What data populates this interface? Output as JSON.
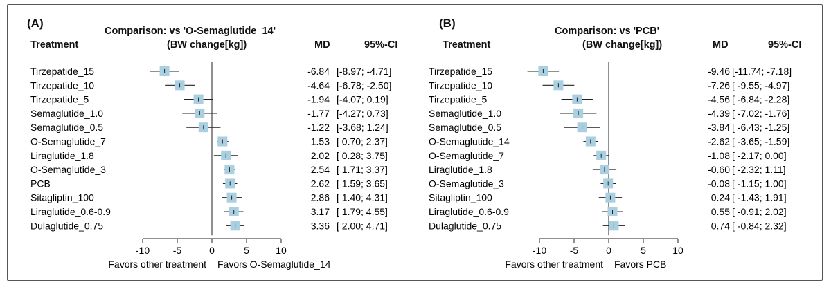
{
  "chart_data": [
    {
      "type": "forest",
      "panel_label": "(A)",
      "title": "Comparison: vs 'O-Semaglutide_14'",
      "subtitle": "(BW change[kg])",
      "column_headers": {
        "treatment": "Treatment",
        "md": "MD",
        "ci": "95%-CI"
      },
      "x_ticks": [
        "-10",
        "-5",
        "0",
        "5",
        "10"
      ],
      "xlim": [
        -10,
        10
      ],
      "xlabel_left": "Favors other treatment",
      "xlabel_right": "Favors O-Semaglutide_14",
      "rows": [
        {
          "treatment": "Tirzepatide_15",
          "md": -6.84,
          "lo": -8.97,
          "hi": -4.71,
          "md_text": "-6.84",
          "ci_text": "[-8.97; -4.71]"
        },
        {
          "treatment": "Tirzepatide_10",
          "md": -4.64,
          "lo": -6.78,
          "hi": -2.5,
          "md_text": "-4.64",
          "ci_text": "[-6.78; -2.50]"
        },
        {
          "treatment": "Tirzepatide_5",
          "md": -1.94,
          "lo": -4.07,
          "hi": 0.19,
          "md_text": "-1.94",
          "ci_text": "[-4.07; 0.19]"
        },
        {
          "treatment": "Semaglutide_1.0",
          "md": -1.77,
          "lo": -4.27,
          "hi": 0.73,
          "md_text": "-1.77",
          "ci_text": "[-4.27; 0.73]"
        },
        {
          "treatment": "Semaglutide_0.5",
          "md": -1.22,
          "lo": -3.68,
          "hi": 1.24,
          "md_text": "-1.22",
          "ci_text": "[-3.68; 1.24]"
        },
        {
          "treatment": "O-Semaglutide_7",
          "md": 1.53,
          "lo": 0.7,
          "hi": 2.37,
          "md_text": "1.53",
          "ci_text": "[ 0.70; 2.37]"
        },
        {
          "treatment": "Liraglutide_1.8",
          "md": 2.02,
          "lo": 0.28,
          "hi": 3.75,
          "md_text": "2.02",
          "ci_text": "[ 0.28; 3.75]"
        },
        {
          "treatment": "O-Semaglutide_3",
          "md": 2.54,
          "lo": 1.71,
          "hi": 3.37,
          "md_text": "2.54",
          "ci_text": "[ 1.71; 3.37]"
        },
        {
          "treatment": "PCB",
          "md": 2.62,
          "lo": 1.59,
          "hi": 3.65,
          "md_text": "2.62",
          "ci_text": "[ 1.59; 3.65]"
        },
        {
          "treatment": "Sitagliptin_100",
          "md": 2.86,
          "lo": 1.4,
          "hi": 4.31,
          "md_text": "2.86",
          "ci_text": "[ 1.40; 4.31]"
        },
        {
          "treatment": "Liraglutide_0.6-0.9",
          "md": 3.17,
          "lo": 1.79,
          "hi": 4.55,
          "md_text": "3.17",
          "ci_text": "[ 1.79; 4.55]"
        },
        {
          "treatment": "Dulaglutide_0.75",
          "md": 3.36,
          "lo": 2.0,
          "hi": 4.71,
          "md_text": "3.36",
          "ci_text": "[ 2.00; 4.71]"
        }
      ]
    },
    {
      "type": "forest",
      "panel_label": "(B)",
      "title": "Comparison: vs 'PCB'",
      "subtitle": "(BW change[kg])",
      "column_headers": {
        "treatment": "Treatment",
        "md": "MD",
        "ci": "95%-CI"
      },
      "x_ticks": [
        "-10",
        "-5",
        "0",
        "5",
        "10"
      ],
      "xlim": [
        -10,
        10
      ],
      "xlabel_left": "Favors other treatment",
      "xlabel_right": "Favors PCB",
      "rows": [
        {
          "treatment": "Tirzepatide_15",
          "md": -9.46,
          "lo": -11.74,
          "hi": -7.18,
          "md_text": "-9.46",
          "ci_text": "[-11.74; -7.18]"
        },
        {
          "treatment": "Tirzepatide_10",
          "md": -7.26,
          "lo": -9.55,
          "hi": -4.97,
          "md_text": "-7.26",
          "ci_text": "[ -9.55; -4.97]"
        },
        {
          "treatment": "Tirzepatide_5",
          "md": -4.56,
          "lo": -6.84,
          "hi": -2.28,
          "md_text": "-4.56",
          "ci_text": "[ -6.84; -2.28]"
        },
        {
          "treatment": "Semaglutide_1.0",
          "md": -4.39,
          "lo": -7.02,
          "hi": -1.76,
          "md_text": "-4.39",
          "ci_text": "[ -7.02; -1.76]"
        },
        {
          "treatment": "Semaglutide_0.5",
          "md": -3.84,
          "lo": -6.43,
          "hi": -1.25,
          "md_text": "-3.84",
          "ci_text": "[ -6.43; -1.25]"
        },
        {
          "treatment": "O-Semaglutide_14",
          "md": -2.62,
          "lo": -3.65,
          "hi": -1.59,
          "md_text": "-2.62",
          "ci_text": "[ -3.65; -1.59]"
        },
        {
          "treatment": "O-Semaglutide_7",
          "md": -1.08,
          "lo": -2.17,
          "hi": 0.0,
          "md_text": "-1.08",
          "ci_text": "[ -2.17; 0.00]"
        },
        {
          "treatment": "Liraglutide_1.8",
          "md": -0.6,
          "lo": -2.32,
          "hi": 1.11,
          "md_text": "-0.60",
          "ci_text": "[ -2.32; 1.11]"
        },
        {
          "treatment": "O-Semaglutide_3",
          "md": -0.08,
          "lo": -1.15,
          "hi": 1.0,
          "md_text": "-0.08",
          "ci_text": "[ -1.15; 1.00]"
        },
        {
          "treatment": "Sitagliptin_100",
          "md": 0.24,
          "lo": -1.43,
          "hi": 1.91,
          "md_text": "0.24",
          "ci_text": "[ -1.43; 1.91]"
        },
        {
          "treatment": "Liraglutide_0.6-0.9",
          "md": 0.55,
          "lo": -0.91,
          "hi": 2.02,
          "md_text": "0.55",
          "ci_text": "[ -0.91; 2.02]"
        },
        {
          "treatment": "Dulaglutide_0.75",
          "md": 0.74,
          "lo": -0.84,
          "hi": 2.32,
          "md_text": "0.74",
          "ci_text": "[ -0.84; 2.32]"
        }
      ]
    }
  ],
  "colors": {
    "square_fill": "#a9cfe0",
    "line": "#222222",
    "frame": "#555555"
  }
}
